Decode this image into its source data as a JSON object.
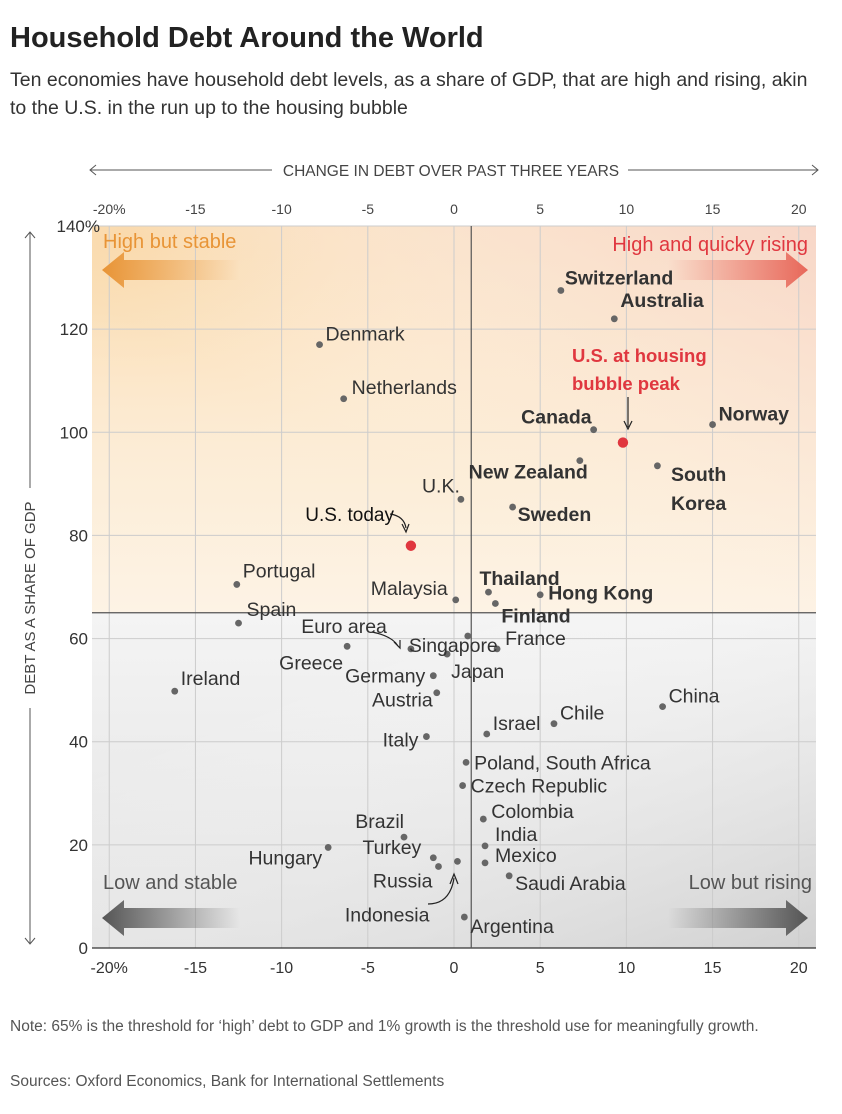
{
  "title": "Household Debt Around the World",
  "subtitle": "Ten economies have household debt levels, as a share of GDP, that are high and rising, akin to the U.S. in the run up to the housing bubble",
  "note": "Note: 65% is the threshold for ‘high’ debt to GDP and 1% growth is the threshold use for meaningfully growth.",
  "sources": "Sources: Oxford Economics, Bank for International Settlements",
  "colors": {
    "orange": "#e89436",
    "red": "#e0373f",
    "grey": "#666666",
    "grid": "#cccccc"
  },
  "chart_data": {
    "type": "scatter",
    "xlabel": "CHANGE IN DEBT OVER PAST THREE YEARS",
    "ylabel": "DEBT AS A SHARE OF GDP",
    "xlim": [
      -21,
      21
    ],
    "ylim": [
      0,
      140
    ],
    "x_ticks": [
      -20,
      -15,
      -10,
      -5,
      0,
      5,
      10,
      15,
      20
    ],
    "x_tick_labels": [
      "-20%",
      "-15",
      "-10",
      "-5",
      "0",
      "5",
      "10",
      "15",
      "20"
    ],
    "y_ticks": [
      0,
      20,
      40,
      60,
      80,
      100,
      120,
      140
    ],
    "y_tick_labels": [
      "0",
      "20",
      "40",
      "60",
      "80",
      "100",
      "120",
      "140%"
    ],
    "thresholds": {
      "x": 1,
      "y": 65
    },
    "quadrants": {
      "high_stable": "High but stable",
      "high_rising": "High and quicky rising",
      "low_stable": "Low and stable",
      "low_rising": "Low but rising"
    },
    "points": [
      {
        "name": "Switzerland",
        "x": 6.2,
        "y": 127.5,
        "style": "bold"
      },
      {
        "name": "Australia",
        "x": 9.3,
        "y": 122,
        "style": "bold"
      },
      {
        "name": "Denmark",
        "x": -7.8,
        "y": 117,
        "style": "normal"
      },
      {
        "name": "Netherlands",
        "x": -6.4,
        "y": 106.5,
        "style": "normal"
      },
      {
        "name": "Canada",
        "x": 8.1,
        "y": 100.5,
        "style": "bold"
      },
      {
        "name": "U.S. at housing bubble peak",
        "x": 9.8,
        "y": 98,
        "style": "red"
      },
      {
        "name": "Norway",
        "x": 15,
        "y": 101.5,
        "style": "bold"
      },
      {
        "name": "New Zealand",
        "x": 7.3,
        "y": 94.5,
        "style": "bold"
      },
      {
        "name": "South Korea",
        "x": 11.8,
        "y": 93.5,
        "style": "bold"
      },
      {
        "name": "U.K.",
        "x": 0.4,
        "y": 87,
        "style": "normal"
      },
      {
        "name": "Sweden",
        "x": 3.4,
        "y": 85.5,
        "style": "bold"
      },
      {
        "name": "U.S. today",
        "x": -2.5,
        "y": 78,
        "style": "red"
      },
      {
        "name": "Portugal",
        "x": -12.6,
        "y": 70.5,
        "style": "normal"
      },
      {
        "name": "Malaysia",
        "x": 0.1,
        "y": 67.5,
        "style": "normal"
      },
      {
        "name": "Thailand",
        "x": 2.0,
        "y": 69,
        "style": "bold"
      },
      {
        "name": "Hong Kong",
        "x": 5.0,
        "y": 68.5,
        "style": "bold"
      },
      {
        "name": "Finland",
        "x": 2.4,
        "y": 66.8,
        "style": "bold"
      },
      {
        "name": "Spain",
        "x": -12.5,
        "y": 63,
        "style": "normal"
      },
      {
        "name": "Singapore",
        "x": 0.8,
        "y": 60.5,
        "style": "normal"
      },
      {
        "name": "Euro area",
        "x": -2.5,
        "y": 58,
        "style": "normal"
      },
      {
        "name": "France",
        "x": 2.5,
        "y": 58,
        "style": "normal"
      },
      {
        "name": "Greece",
        "x": -6.2,
        "y": 58.5,
        "style": "normal"
      },
      {
        "name": "Japan",
        "x": -0.4,
        "y": 57,
        "style": "normal"
      },
      {
        "name": "Germany",
        "x": -1.2,
        "y": 52.8,
        "style": "normal"
      },
      {
        "name": "Ireland",
        "x": -16.2,
        "y": 49.8,
        "style": "normal"
      },
      {
        "name": "Austria",
        "x": -1.0,
        "y": 49.5,
        "style": "normal"
      },
      {
        "name": "Chile",
        "x": 5.8,
        "y": 43.5,
        "style": "normal"
      },
      {
        "name": "China",
        "x": 12.1,
        "y": 46.8,
        "style": "normal"
      },
      {
        "name": "Israel",
        "x": 1.9,
        "y": 41.5,
        "style": "normal"
      },
      {
        "name": "Italy",
        "x": -1.6,
        "y": 41,
        "style": "normal"
      },
      {
        "name": "Poland, South Africa",
        "x": 0.7,
        "y": 36,
        "style": "normal"
      },
      {
        "name": "Czech Republic",
        "x": 0.5,
        "y": 31.5,
        "style": "normal"
      },
      {
        "name": "Colombia",
        "x": 1.7,
        "y": 25,
        "style": "normal"
      },
      {
        "name": "Brazil",
        "x": -2.9,
        "y": 21.5,
        "style": "normal"
      },
      {
        "name": "India",
        "x": 1.8,
        "y": 19.8,
        "style": "normal"
      },
      {
        "name": "Hungary",
        "x": -7.3,
        "y": 19.5,
        "style": "normal"
      },
      {
        "name": "Turkey",
        "x": -1.2,
        "y": 17.5,
        "style": "normal"
      },
      {
        "name": "Mexico",
        "x": 1.8,
        "y": 16.5,
        "style": "normal"
      },
      {
        "name": "Russia",
        "x": -0.9,
        "y": 15.8,
        "style": "normal"
      },
      {
        "name": "Indonesia",
        "x": 0.2,
        "y": 16.8,
        "style": "normal"
      },
      {
        "name": "Saudi Arabia",
        "x": 3.2,
        "y": 14,
        "style": "normal"
      },
      {
        "name": "Argentina",
        "x": 0.6,
        "y": 6,
        "style": "normal"
      }
    ]
  }
}
